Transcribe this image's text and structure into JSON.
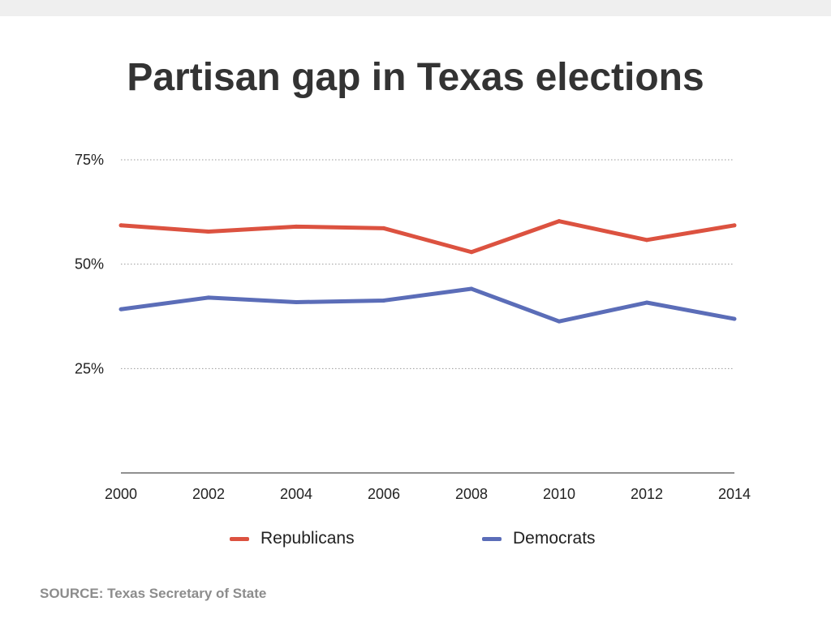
{
  "chart_data": {
    "type": "line",
    "title": "Partisan gap in Texas elections",
    "x": [
      "2000",
      "2002",
      "2004",
      "2006",
      "2008",
      "2010",
      "2012",
      "2014"
    ],
    "series": [
      {
        "name": "Republicans",
        "color": "#dc5240",
        "values": [
          59.3,
          57.8,
          59.0,
          58.6,
          52.9,
          60.3,
          55.8,
          59.3
        ]
      },
      {
        "name": "Democrats",
        "color": "#5b6db8",
        "values": [
          39.2,
          42.0,
          40.9,
          41.3,
          44.1,
          36.3,
          40.8,
          36.9
        ]
      }
    ],
    "ylim": [
      0,
      75
    ],
    "yticks": [
      {
        "value": 25,
        "label": "25%"
      },
      {
        "value": 50,
        "label": "50%"
      },
      {
        "value": 75,
        "label": "75%"
      }
    ],
    "grid": true,
    "legend_position": "bottom"
  },
  "footer": {
    "source": "SOURCE: Texas Secretary of State"
  }
}
